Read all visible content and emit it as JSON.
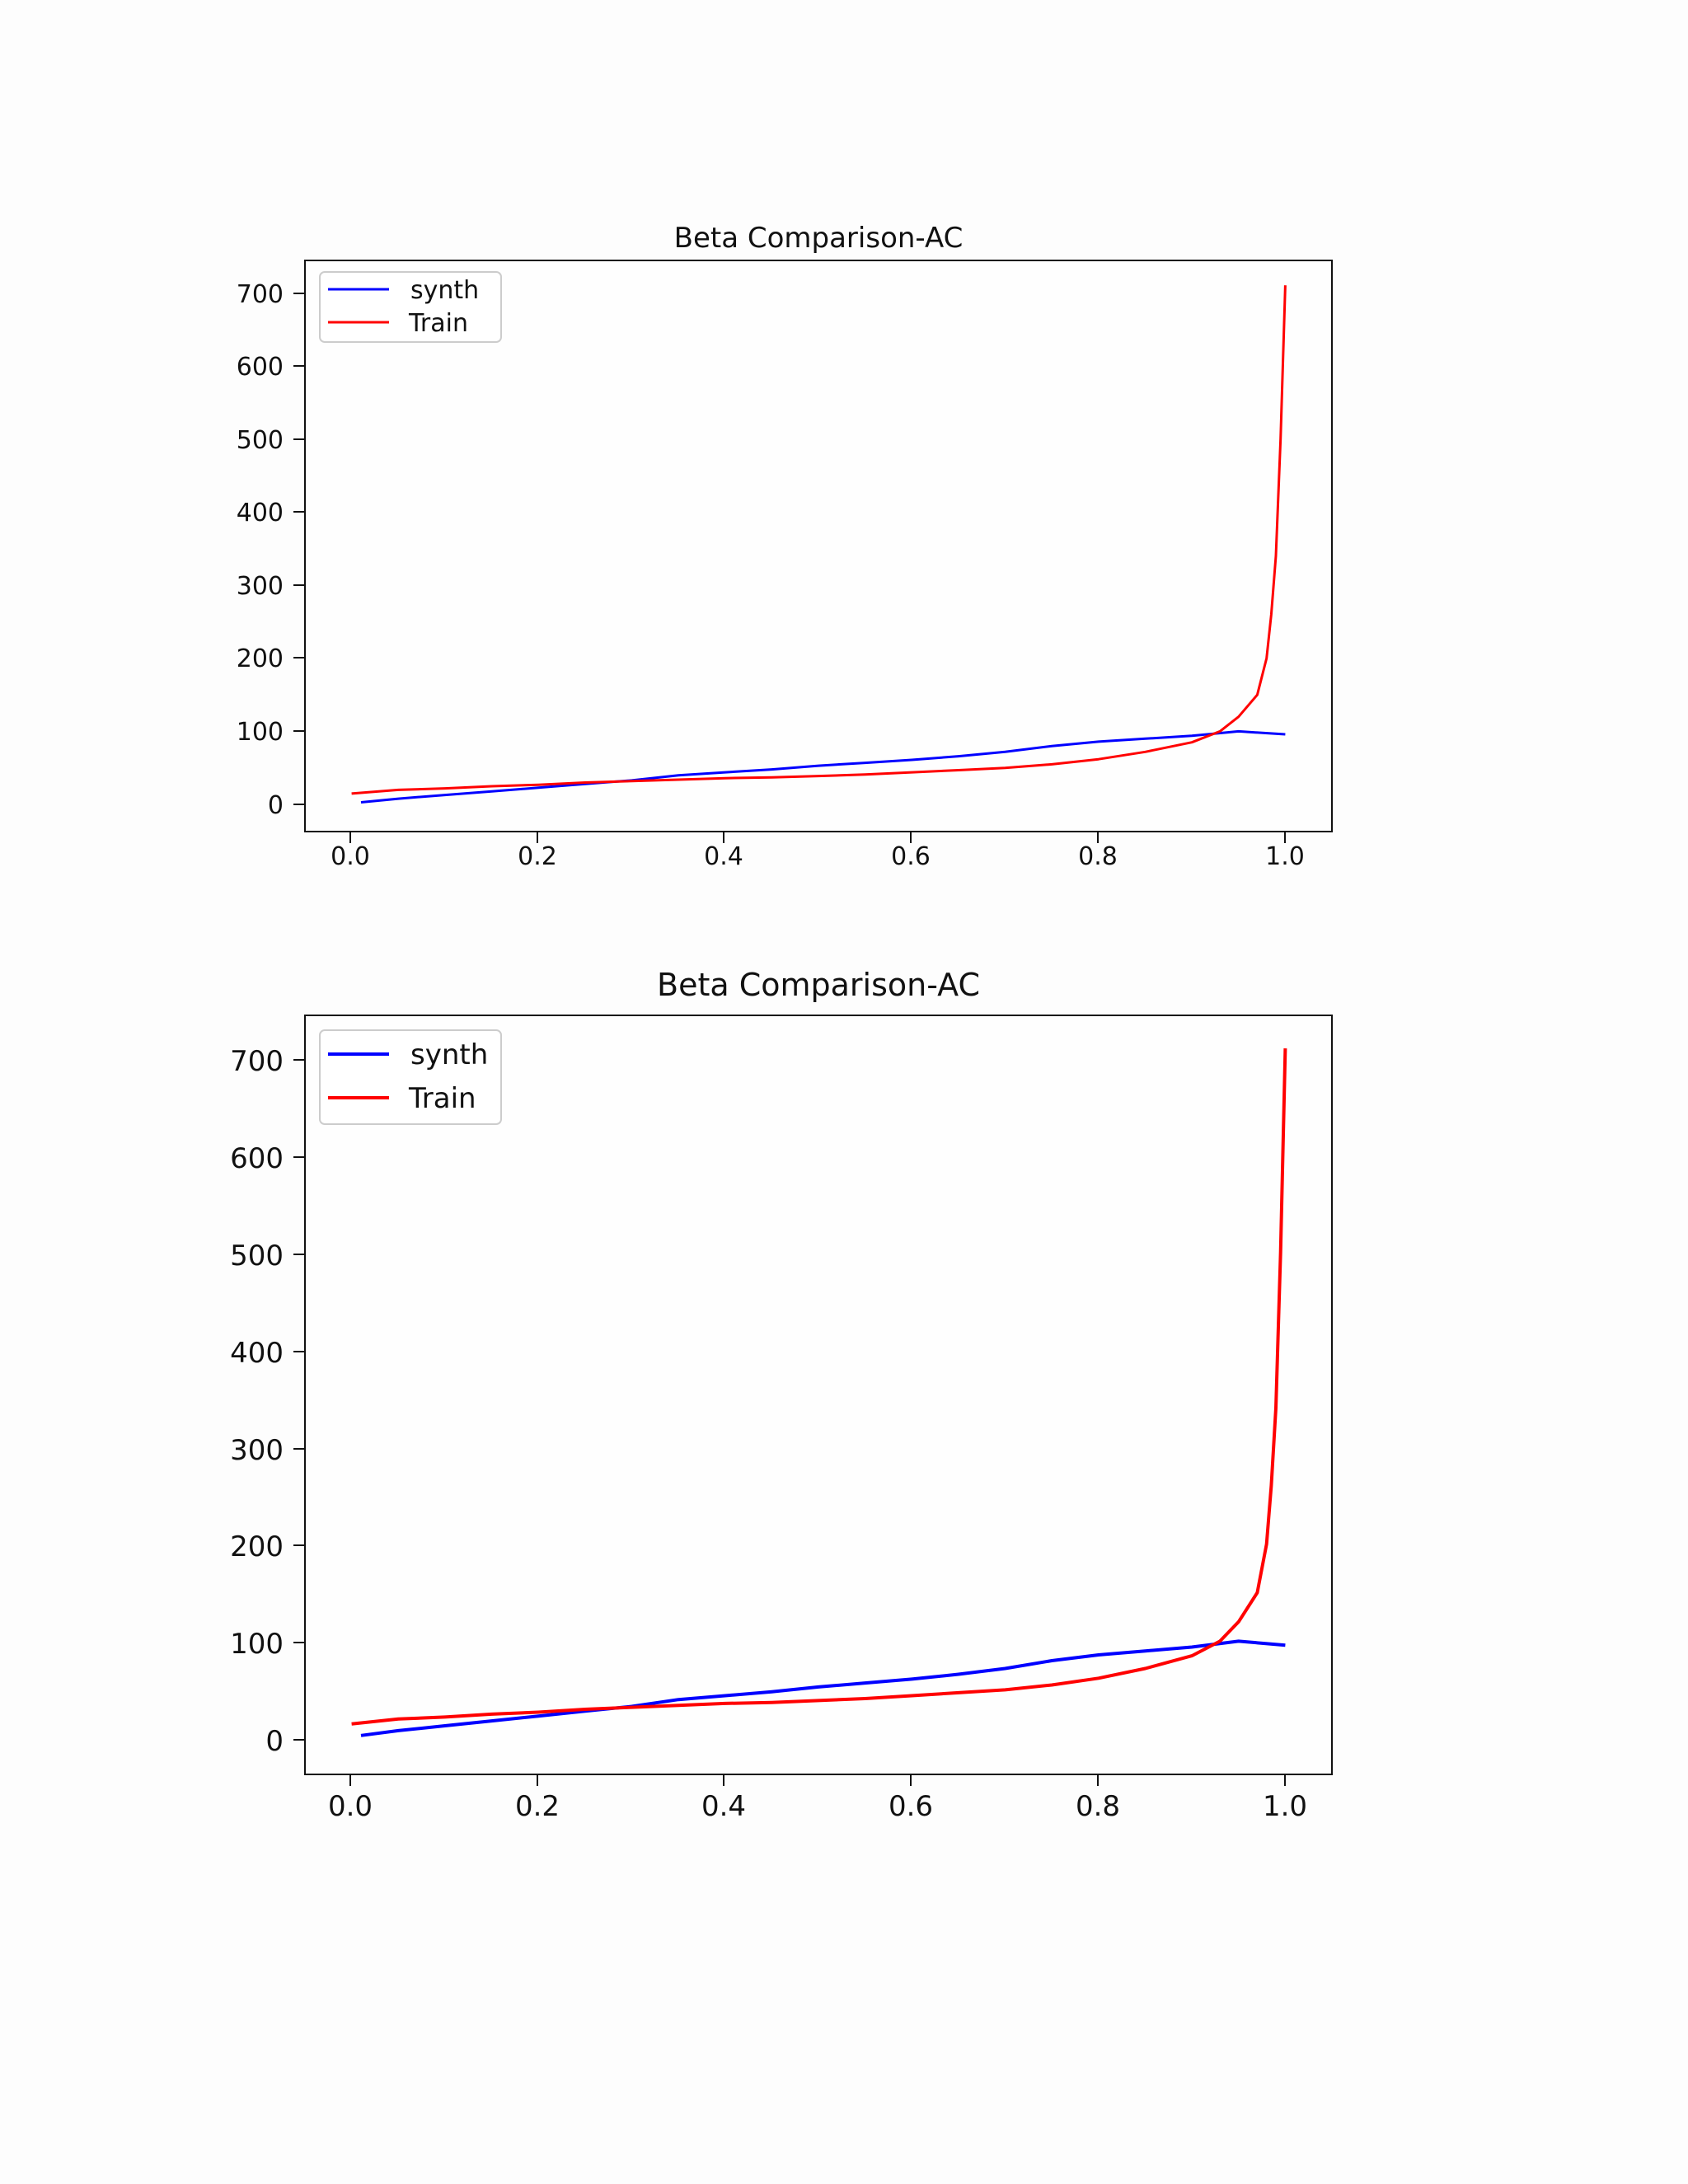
{
  "chart_data": [
    {
      "type": "line",
      "title": "Beta Comparison-AC",
      "xlabel": "",
      "ylabel": "",
      "xlim": [
        -0.05,
        1.05
      ],
      "ylim": [
        -37,
        744
      ],
      "x_ticks": [
        "0.0",
        "0.2",
        "0.4",
        "0.6",
        "0.8",
        "1.0"
      ],
      "y_ticks": [
        "0",
        "100",
        "200",
        "300",
        "400",
        "500",
        "600",
        "700"
      ],
      "legend": {
        "position": "top-left",
        "entries": [
          "synth",
          "Train"
        ]
      },
      "grid": false,
      "series": [
        {
          "name": "synth",
          "color": "#0000ff",
          "x": [
            0.01,
            0.05,
            0.1,
            0.15,
            0.2,
            0.25,
            0.3,
            0.35,
            0.4,
            0.45,
            0.5,
            0.55,
            0.6,
            0.65,
            0.7,
            0.75,
            0.8,
            0.85,
            0.9,
            0.95,
            1.0
          ],
          "y": [
            3,
            8,
            13,
            18,
            23,
            28,
            33,
            40,
            44,
            48,
            53,
            57,
            61,
            66,
            72,
            80,
            86,
            90,
            94,
            100,
            96
          ]
        },
        {
          "name": "Train",
          "color": "#ff0000",
          "x": [
            0.0,
            0.05,
            0.1,
            0.15,
            0.2,
            0.25,
            0.3,
            0.35,
            0.4,
            0.45,
            0.5,
            0.55,
            0.6,
            0.65,
            0.7,
            0.75,
            0.8,
            0.85,
            0.9,
            0.93,
            0.95,
            0.97,
            0.98,
            0.985,
            0.99,
            0.995,
            1.0
          ],
          "y": [
            15,
            20,
            22,
            25,
            27,
            30,
            32,
            34,
            36,
            37,
            39,
            41,
            44,
            47,
            50,
            55,
            62,
            72,
            85,
            100,
            120,
            150,
            200,
            260,
            340,
            500,
            710
          ]
        }
      ]
    },
    {
      "type": "line",
      "title": "Beta Comparison-AC",
      "xlabel": "",
      "ylabel": "",
      "xlim": [
        -0.05,
        1.05
      ],
      "ylim": [
        -37,
        744
      ],
      "x_ticks": [
        "0.0",
        "0.2",
        "0.4",
        "0.6",
        "0.8",
        "1.0"
      ],
      "y_ticks": [
        "0",
        "100",
        "200",
        "300",
        "400",
        "500",
        "600",
        "700"
      ],
      "legend": {
        "position": "top-left",
        "entries": [
          "synth",
          "Train"
        ]
      },
      "grid": false,
      "series": [
        {
          "name": "synth",
          "color": "#0000ff",
          "x": [
            0.01,
            0.05,
            0.1,
            0.15,
            0.2,
            0.25,
            0.3,
            0.35,
            0.4,
            0.45,
            0.5,
            0.55,
            0.6,
            0.65,
            0.7,
            0.75,
            0.8,
            0.85,
            0.9,
            0.95,
            1.0
          ],
          "y": [
            3,
            8,
            13,
            18,
            23,
            28,
            33,
            40,
            44,
            48,
            53,
            57,
            61,
            66,
            72,
            80,
            86,
            90,
            94,
            100,
            96
          ]
        },
        {
          "name": "Train",
          "color": "#ff0000",
          "x": [
            0.0,
            0.05,
            0.1,
            0.15,
            0.2,
            0.25,
            0.3,
            0.35,
            0.4,
            0.45,
            0.5,
            0.55,
            0.6,
            0.65,
            0.7,
            0.75,
            0.8,
            0.85,
            0.9,
            0.93,
            0.95,
            0.97,
            0.98,
            0.985,
            0.99,
            0.995,
            1.0
          ],
          "y": [
            15,
            20,
            22,
            25,
            27,
            30,
            32,
            34,
            36,
            37,
            39,
            41,
            44,
            47,
            50,
            55,
            62,
            72,
            85,
            100,
            120,
            150,
            200,
            260,
            340,
            500,
            710
          ]
        }
      ]
    }
  ]
}
